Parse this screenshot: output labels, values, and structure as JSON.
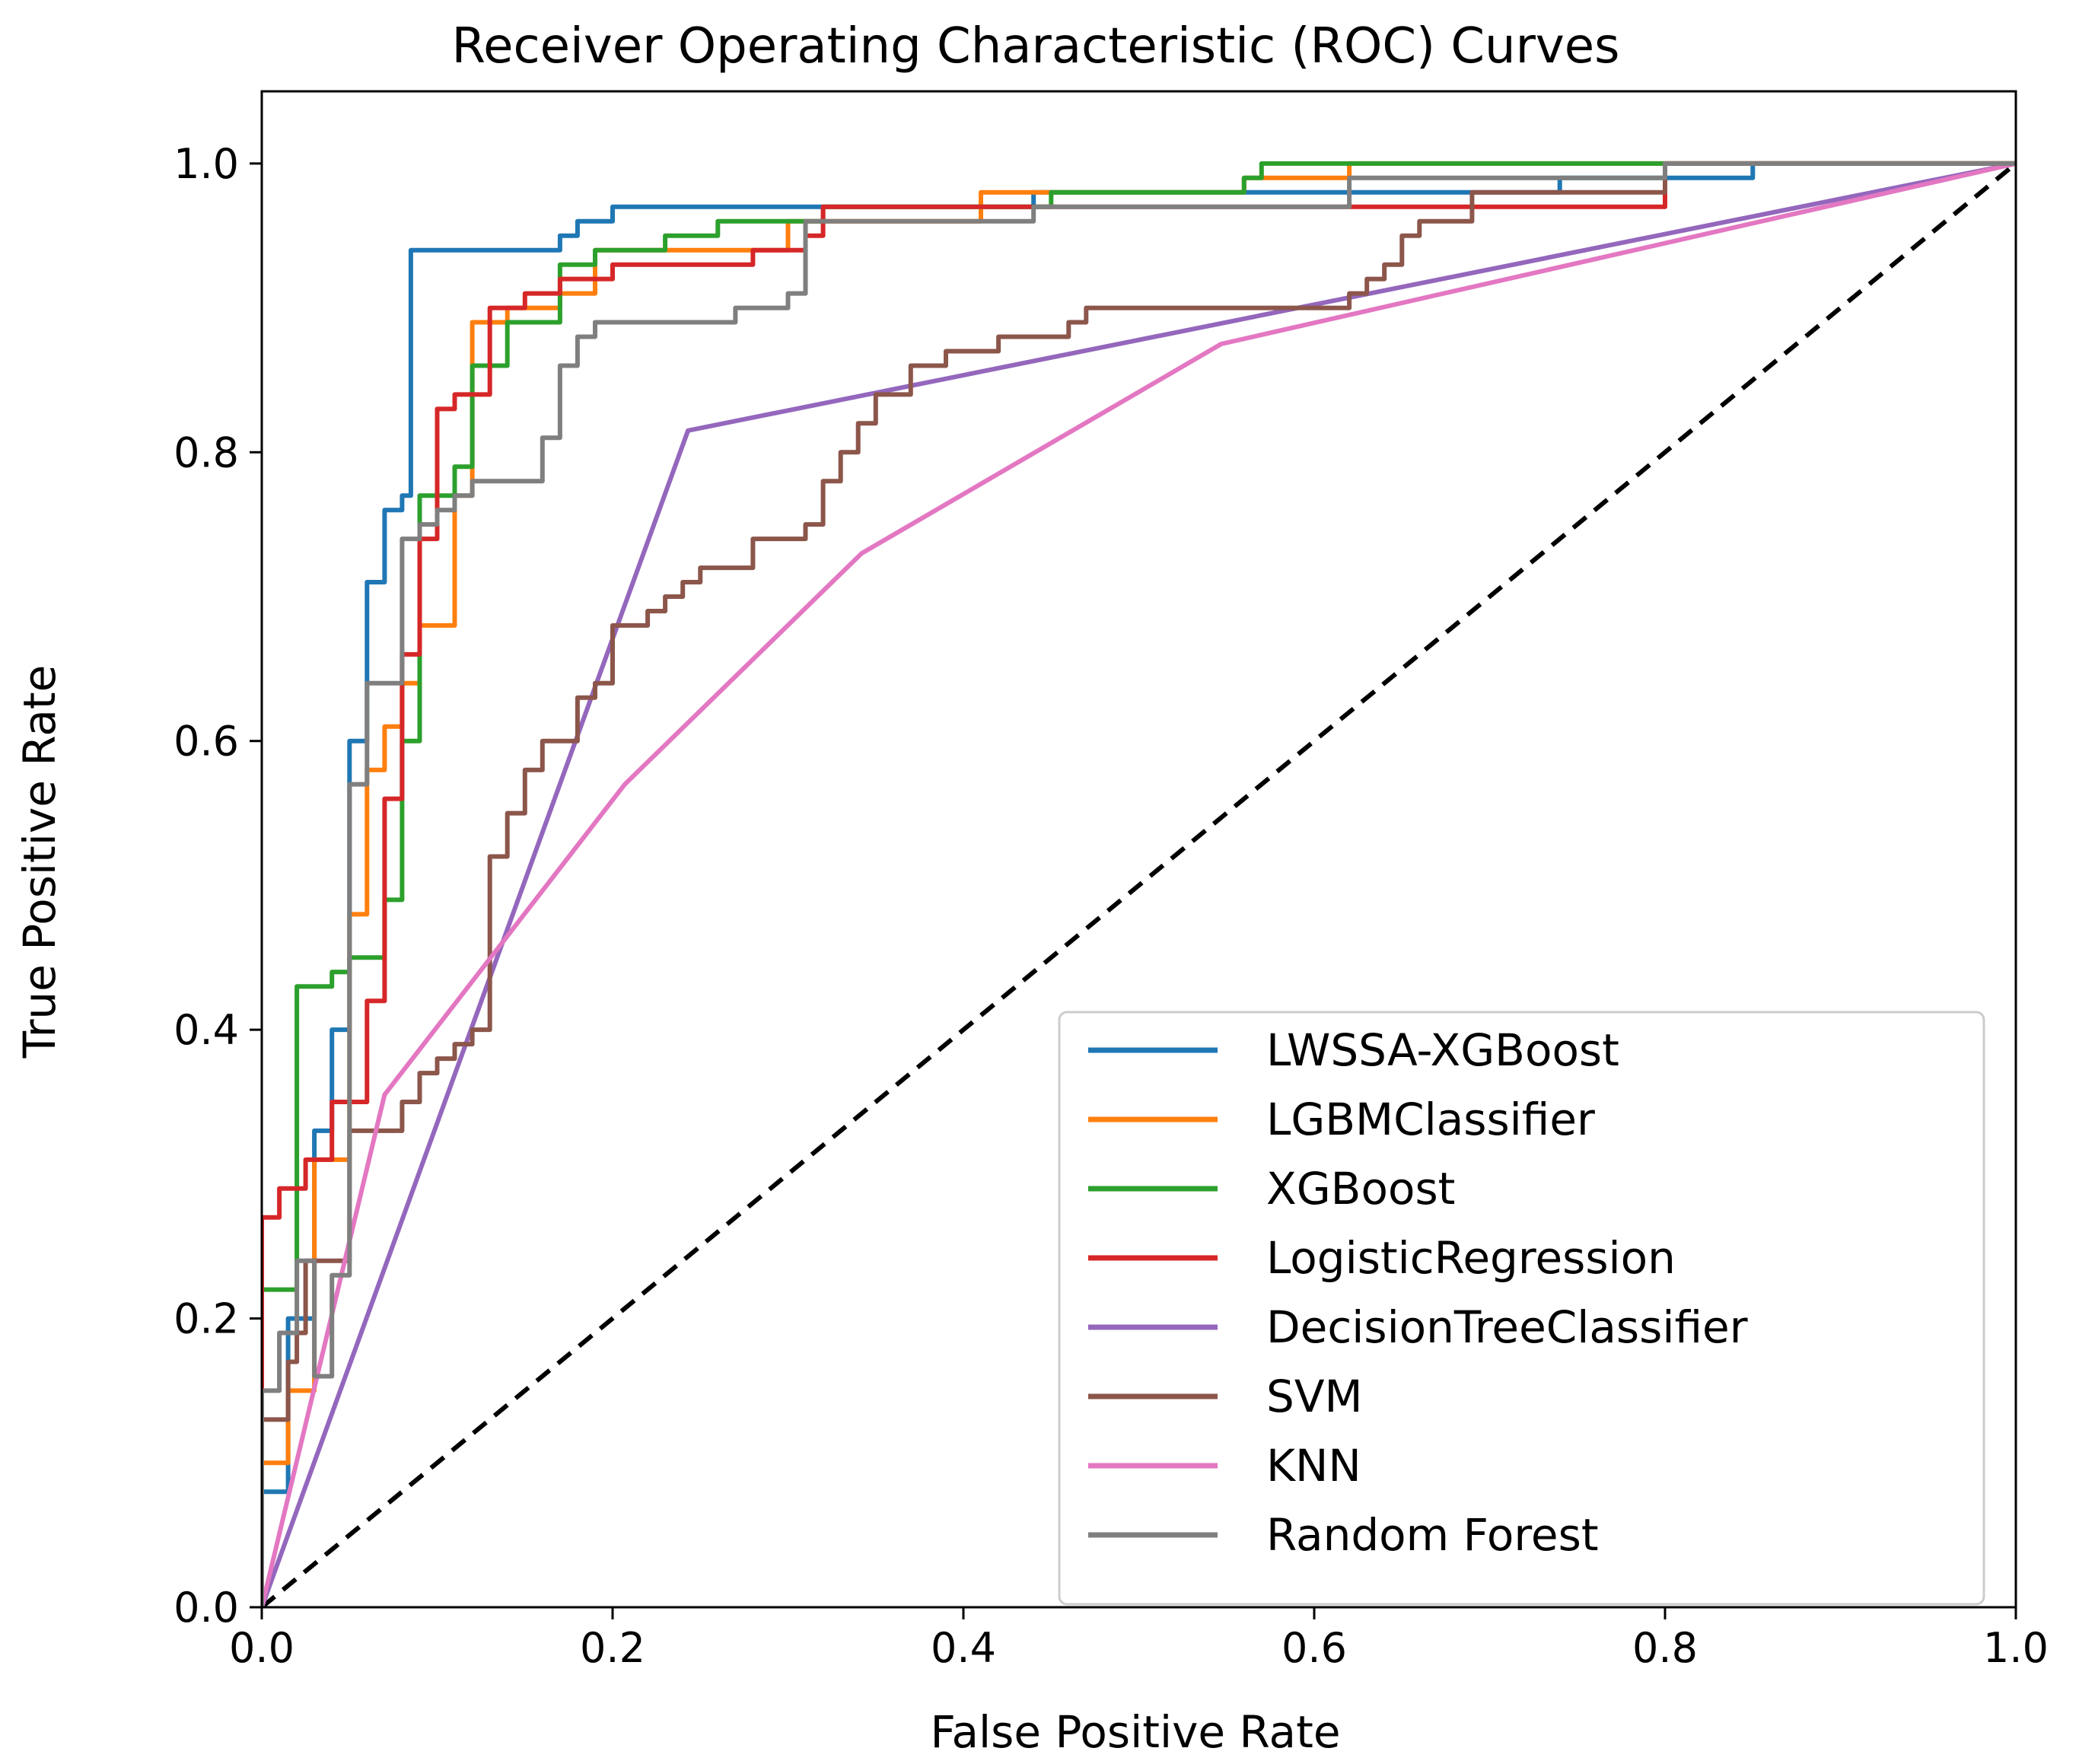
{
  "chart_data": {
    "type": "line",
    "title": "Receiver Operating Characteristic (ROC) Curves",
    "xlabel": "False Positive Rate",
    "ylabel": "True Positive Rate",
    "xlim": [
      0,
      1
    ],
    "ylim": [
      0,
      1.05
    ],
    "xticks": [
      0.0,
      0.2,
      0.4,
      0.6,
      0.8,
      1.0
    ],
    "yticks": [
      0.0,
      0.2,
      0.4,
      0.6,
      0.8,
      1.0
    ],
    "xtick_labels": [
      "0.0",
      "0.2",
      "0.4",
      "0.6",
      "0.8",
      "1.0"
    ],
    "ytick_labels": [
      "0.0",
      "0.2",
      "0.4",
      "0.6",
      "0.8",
      "1.0"
    ],
    "grid": false,
    "legend_position": "lower-right",
    "diagonal": {
      "name": "chance",
      "x": [
        0,
        1
      ],
      "y": [
        0,
        1
      ],
      "color": "#000000",
      "style": "dashed"
    },
    "series": [
      {
        "name": "LWSSA-XGBoost",
        "color": "#1f77b4",
        "x": [
          0,
          0,
          0.015,
          0.015,
          0.03,
          0.03,
          0.04,
          0.04,
          0.05,
          0.05,
          0.06,
          0.06,
          0.07,
          0.07,
          0.08,
          0.08,
          0.085,
          0.085,
          0.17,
          0.17,
          0.18,
          0.18,
          0.2,
          0.2,
          0.44,
          0.44,
          0.63,
          0.63,
          0.74,
          0.74,
          0.8,
          0.8,
          0.85,
          0.85,
          1.0
        ],
        "y": [
          0,
          0.08,
          0.08,
          0.2,
          0.2,
          0.33,
          0.33,
          0.4,
          0.4,
          0.6,
          0.6,
          0.71,
          0.71,
          0.76,
          0.76,
          0.77,
          0.77,
          0.94,
          0.94,
          0.95,
          0.95,
          0.96,
          0.96,
          0.97,
          0.97,
          0.98,
          0.98,
          0.98,
          0.98,
          0.99,
          0.99,
          0.99,
          0.99,
          1.0,
          1.0
        ]
      },
      {
        "name": "LGBMClassifier",
        "color": "#ff7f0e",
        "x": [
          0,
          0,
          0.015,
          0.015,
          0.03,
          0.03,
          0.05,
          0.05,
          0.06,
          0.06,
          0.07,
          0.07,
          0.08,
          0.08,
          0.09,
          0.09,
          0.11,
          0.11,
          0.12,
          0.12,
          0.14,
          0.14,
          0.17,
          0.17,
          0.19,
          0.19,
          0.3,
          0.3,
          0.41,
          0.41,
          0.56,
          0.56,
          0.62,
          0.62,
          0.8,
          0.8,
          1.0
        ],
        "y": [
          0,
          0.1,
          0.1,
          0.15,
          0.15,
          0.31,
          0.31,
          0.48,
          0.48,
          0.58,
          0.58,
          0.61,
          0.61,
          0.64,
          0.64,
          0.68,
          0.68,
          0.77,
          0.77,
          0.89,
          0.89,
          0.9,
          0.9,
          0.91,
          0.91,
          0.94,
          0.94,
          0.96,
          0.96,
          0.98,
          0.98,
          0.99,
          0.99,
          1.0,
          1.0,
          1.0,
          1.0
        ]
      },
      {
        "name": "XGBoost",
        "color": "#2ca02c",
        "x": [
          0,
          0,
          0.02,
          0.02,
          0.04,
          0.04,
          0.05,
          0.05,
          0.07,
          0.07,
          0.08,
          0.08,
          0.09,
          0.09,
          0.11,
          0.11,
          0.12,
          0.12,
          0.14,
          0.14,
          0.17,
          0.17,
          0.19,
          0.19,
          0.23,
          0.23,
          0.26,
          0.26,
          0.32,
          0.32,
          0.45,
          0.45,
          0.56,
          0.56,
          0.57,
          0.57,
          0.8,
          0.8,
          1.0
        ],
        "y": [
          0,
          0.22,
          0.22,
          0.43,
          0.43,
          0.44,
          0.44,
          0.45,
          0.45,
          0.49,
          0.49,
          0.6,
          0.6,
          0.77,
          0.77,
          0.79,
          0.79,
          0.86,
          0.86,
          0.89,
          0.89,
          0.93,
          0.93,
          0.94,
          0.94,
          0.95,
          0.95,
          0.96,
          0.96,
          0.97,
          0.97,
          0.98,
          0.98,
          0.99,
          0.99,
          1.0,
          1.0,
          1.0,
          1.0
        ]
      },
      {
        "name": "LogisticRegression",
        "color": "#d62728",
        "x": [
          0,
          0,
          0.01,
          0.01,
          0.025,
          0.025,
          0.04,
          0.04,
          0.06,
          0.06,
          0.07,
          0.07,
          0.08,
          0.08,
          0.09,
          0.09,
          0.1,
          0.1,
          0.11,
          0.11,
          0.13,
          0.13,
          0.15,
          0.15,
          0.17,
          0.17,
          0.2,
          0.2,
          0.28,
          0.28,
          0.31,
          0.31,
          0.32,
          0.32,
          0.8,
          0.8,
          1.0
        ],
        "y": [
          0,
          0.27,
          0.27,
          0.29,
          0.29,
          0.31,
          0.31,
          0.35,
          0.35,
          0.42,
          0.42,
          0.56,
          0.56,
          0.66,
          0.66,
          0.74,
          0.74,
          0.83,
          0.83,
          0.84,
          0.84,
          0.9,
          0.9,
          0.91,
          0.91,
          0.92,
          0.92,
          0.93,
          0.93,
          0.94,
          0.94,
          0.95,
          0.95,
          0.97,
          0.97,
          1.0,
          1.0
        ]
      },
      {
        "name": "DecisionTreeClassifier",
        "color": "#9467bd",
        "x": [
          0,
          0.243,
          1.0
        ],
        "y": [
          0,
          0.815,
          1.0
        ]
      },
      {
        "name": "SVM",
        "color": "#8c564b",
        "x": [
          0,
          0,
          0.015,
          0.015,
          0.02,
          0.02,
          0.025,
          0.025,
          0.05,
          0.05,
          0.08,
          0.08,
          0.09,
          0.09,
          0.1,
          0.1,
          0.11,
          0.11,
          0.12,
          0.12,
          0.13,
          0.13,
          0.14,
          0.14,
          0.15,
          0.15,
          0.16,
          0.16,
          0.18,
          0.18,
          0.19,
          0.19,
          0.2,
          0.2,
          0.22,
          0.22,
          0.23,
          0.23,
          0.24,
          0.24,
          0.25,
          0.25,
          0.28,
          0.28,
          0.31,
          0.31,
          0.32,
          0.32,
          0.33,
          0.33,
          0.34,
          0.34,
          0.35,
          0.35,
          0.37,
          0.37,
          0.39,
          0.39,
          0.4,
          0.4,
          0.42,
          0.42,
          0.46,
          0.46,
          0.47,
          0.47,
          0.62,
          0.62,
          0.63,
          0.63,
          0.64,
          0.64,
          0.65,
          0.65,
          0.66,
          0.66,
          0.69,
          0.69,
          0.8,
          0.8,
          1.0
        ],
        "y": [
          0,
          0.13,
          0.13,
          0.17,
          0.17,
          0.19,
          0.19,
          0.24,
          0.24,
          0.33,
          0.33,
          0.35,
          0.35,
          0.37,
          0.37,
          0.38,
          0.38,
          0.39,
          0.39,
          0.4,
          0.4,
          0.52,
          0.52,
          0.55,
          0.55,
          0.58,
          0.58,
          0.6,
          0.6,
          0.63,
          0.63,
          0.64,
          0.64,
          0.68,
          0.68,
          0.69,
          0.69,
          0.7,
          0.7,
          0.71,
          0.71,
          0.72,
          0.72,
          0.74,
          0.74,
          0.75,
          0.75,
          0.78,
          0.78,
          0.8,
          0.8,
          0.82,
          0.82,
          0.84,
          0.84,
          0.86,
          0.86,
          0.87,
          0.87,
          0.87,
          0.87,
          0.88,
          0.88,
          0.89,
          0.89,
          0.9,
          0.9,
          0.91,
          0.91,
          0.92,
          0.92,
          0.93,
          0.93,
          0.95,
          0.95,
          0.96,
          0.96,
          0.98,
          0.98,
          1.0,
          1.0
        ]
      },
      {
        "name": "KNN",
        "color": "#e377c2",
        "x": [
          0,
          0.07,
          0.207,
          0.342,
          0.547,
          1.0
        ],
        "y": [
          0,
          0.355,
          0.57,
          0.73,
          0.875,
          1.0
        ]
      },
      {
        "name": "Random Forest",
        "color": "#7f7f7f",
        "x": [
          0,
          0,
          0.01,
          0.01,
          0.02,
          0.02,
          0.03,
          0.03,
          0.04,
          0.04,
          0.05,
          0.05,
          0.06,
          0.06,
          0.07,
          0.07,
          0.08,
          0.08,
          0.09,
          0.09,
          0.1,
          0.1,
          0.11,
          0.11,
          0.12,
          0.12,
          0.16,
          0.16,
          0.17,
          0.17,
          0.18,
          0.18,
          0.19,
          0.19,
          0.25,
          0.25,
          0.27,
          0.27,
          0.3,
          0.3,
          0.31,
          0.31,
          0.44,
          0.44,
          0.62,
          0.62,
          0.8,
          0.8,
          1.0
        ],
        "y": [
          0,
          0.15,
          0.15,
          0.19,
          0.19,
          0.24,
          0.24,
          0.16,
          0.16,
          0.23,
          0.23,
          0.57,
          0.57,
          0.64,
          0.64,
          0.64,
          0.64,
          0.74,
          0.74,
          0.75,
          0.75,
          0.76,
          0.76,
          0.77,
          0.77,
          0.78,
          0.78,
          0.81,
          0.81,
          0.86,
          0.86,
          0.88,
          0.88,
          0.89,
          0.89,
          0.89,
          0.89,
          0.9,
          0.9,
          0.91,
          0.91,
          0.96,
          0.96,
          0.97,
          0.97,
          0.99,
          0.99,
          1.0,
          1.0
        ]
      }
    ]
  }
}
